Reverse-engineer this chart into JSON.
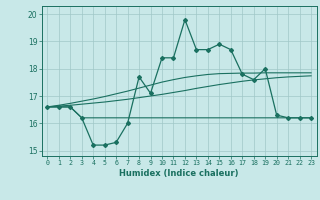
{
  "xlabel": "Humidex (Indice chaleur)",
  "x": [
    0,
    1,
    2,
    3,
    4,
    5,
    6,
    7,
    8,
    9,
    10,
    11,
    12,
    13,
    14,
    15,
    16,
    17,
    18,
    19,
    20,
    21,
    22,
    23
  ],
  "y_main": [
    16.6,
    16.6,
    16.6,
    16.2,
    15.2,
    15.2,
    15.3,
    16.0,
    17.7,
    17.1,
    18.4,
    18.4,
    19.8,
    18.7,
    18.7,
    18.9,
    18.7,
    17.8,
    17.6,
    18.0,
    16.3,
    16.2,
    16.2,
    16.2
  ],
  "y_line1": [
    16.6,
    16.6,
    16.6,
    16.2,
    16.2,
    16.2,
    16.2,
    16.2,
    16.2,
    16.2,
    16.2,
    16.2,
    16.2,
    16.2,
    16.2,
    16.2,
    16.2,
    16.2,
    16.2,
    16.2,
    16.2,
    16.2,
    16.2,
    16.2
  ],
  "y_line2": [
    16.6,
    16.63,
    16.66,
    16.7,
    16.74,
    16.78,
    16.83,
    16.88,
    16.94,
    17.0,
    17.06,
    17.13,
    17.2,
    17.28,
    17.35,
    17.42,
    17.48,
    17.54,
    17.59,
    17.63,
    17.67,
    17.7,
    17.72,
    17.74
  ],
  "y_line3": [
    16.6,
    16.66,
    16.73,
    16.81,
    16.89,
    16.98,
    17.08,
    17.18,
    17.29,
    17.4,
    17.51,
    17.6,
    17.68,
    17.74,
    17.79,
    17.82,
    17.83,
    17.84,
    17.84,
    17.85,
    17.85,
    17.85,
    17.85,
    17.85
  ],
  "bg_color": "#c8e8e8",
  "grid_color": "#a0c8c8",
  "line_color": "#1a7060",
  "ylim": [
    14.8,
    20.3
  ],
  "xlim": [
    -0.5,
    23.5
  ],
  "yticks": [
    15,
    16,
    17,
    18,
    19,
    20
  ],
  "xticks": [
    0,
    1,
    2,
    3,
    4,
    5,
    6,
    7,
    8,
    9,
    10,
    11,
    12,
    13,
    14,
    15,
    16,
    17,
    18,
    19,
    20,
    21,
    22,
    23
  ]
}
